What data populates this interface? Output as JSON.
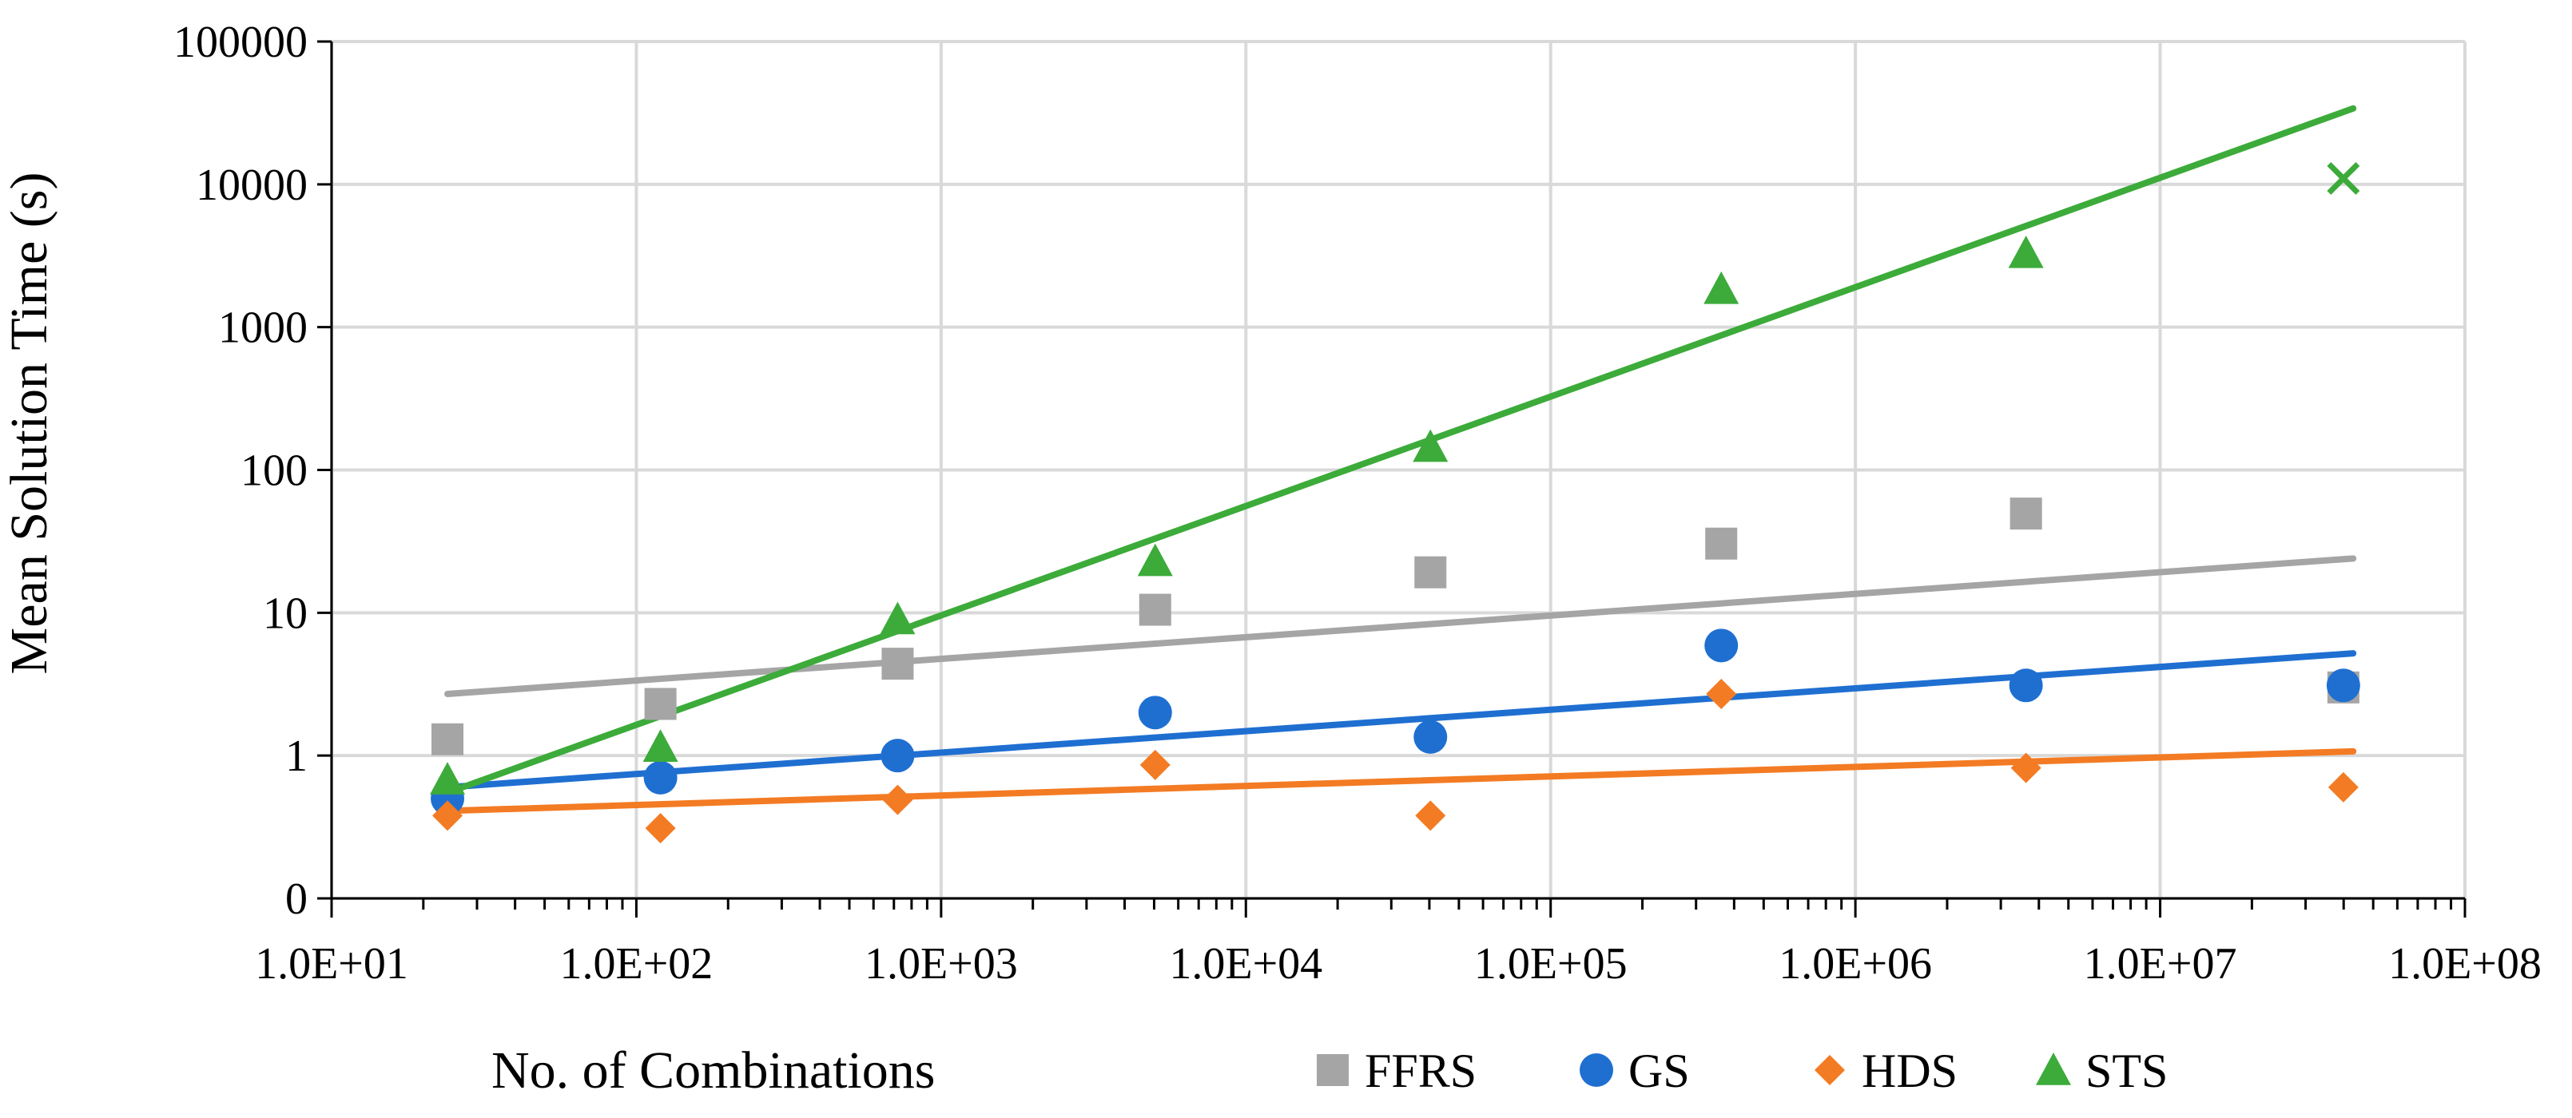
{
  "chart_data": {
    "type": "scatter",
    "title": "",
    "xlabel": "No. of Combinations",
    "ylabel": "Mean Solution Time (s)",
    "x_scale": "log",
    "y_scale": "log",
    "xlim": [
      10,
      100000000
    ],
    "ylim": [
      0.1,
      100000
    ],
    "x_tick_values": [
      10,
      100,
      1000,
      10000,
      100000,
      1000000,
      10000000,
      100000000
    ],
    "x_tick_labels": [
      "1.0E+01",
      "1.0E+02",
      "1.0E+03",
      "1.0E+04",
      "1.0E+05",
      "1.0E+06",
      "1.0E+07",
      "1.0E+08"
    ],
    "y_tick_values": [
      0.1,
      1,
      10,
      100,
      1000,
      10000,
      100000
    ],
    "y_tick_labels": [
      "0",
      "1",
      "10",
      "100",
      "1000",
      "10000",
      "100000"
    ],
    "grid": true,
    "legend_position": "bottom-right",
    "series": [
      {
        "name": "FFRS",
        "color": "#a5a5a5",
        "marker": "square",
        "x": [
          24,
          120,
          720,
          5040,
          40320,
          362880,
          3628800,
          39916800
        ],
        "y": [
          1.3,
          2.3,
          4.4,
          10.5,
          19.2,
          30.5,
          49.5,
          3.0
        ],
        "trendline": {
          "x": [
            24,
            43000000
          ],
          "y": [
            2.7,
            24.0
          ]
        }
      },
      {
        "name": "GS",
        "color": "#1f6fd1",
        "marker": "circle",
        "x": [
          24,
          120,
          720,
          5040,
          40320,
          362880,
          3628800,
          39916800
        ],
        "y": [
          0.5,
          0.7,
          1.0,
          2.0,
          1.35,
          5.9,
          3.1,
          3.1
        ],
        "trendline": {
          "x": [
            24,
            43000000
          ],
          "y": [
            0.6,
            5.2
          ]
        }
      },
      {
        "name": "HDS",
        "color": "#f37b23",
        "marker": "diamond",
        "x": [
          24,
          120,
          720,
          5040,
          40320,
          362880,
          3628800,
          39916800
        ],
        "y": [
          0.38,
          0.31,
          0.49,
          0.86,
          0.38,
          2.7,
          0.82,
          0.6
        ],
        "trendline": {
          "x": [
            24,
            43000000
          ],
          "y": [
            0.41,
            1.07
          ]
        }
      },
      {
        "name": "STS",
        "color": "#3cab3a",
        "marker": "triangle",
        "x": [
          24,
          120,
          720,
          5040,
          40320,
          362880,
          3628800
        ],
        "y": [
          0.68,
          1.15,
          9.0,
          23.0,
          145,
          1850,
          3300
        ],
        "extra_points": [
          {
            "x": 39916800,
            "y": 11000,
            "marker": "x"
          }
        ],
        "trendline": {
          "x": [
            24,
            43000000
          ],
          "y": [
            0.55,
            34000
          ]
        }
      }
    ]
  }
}
